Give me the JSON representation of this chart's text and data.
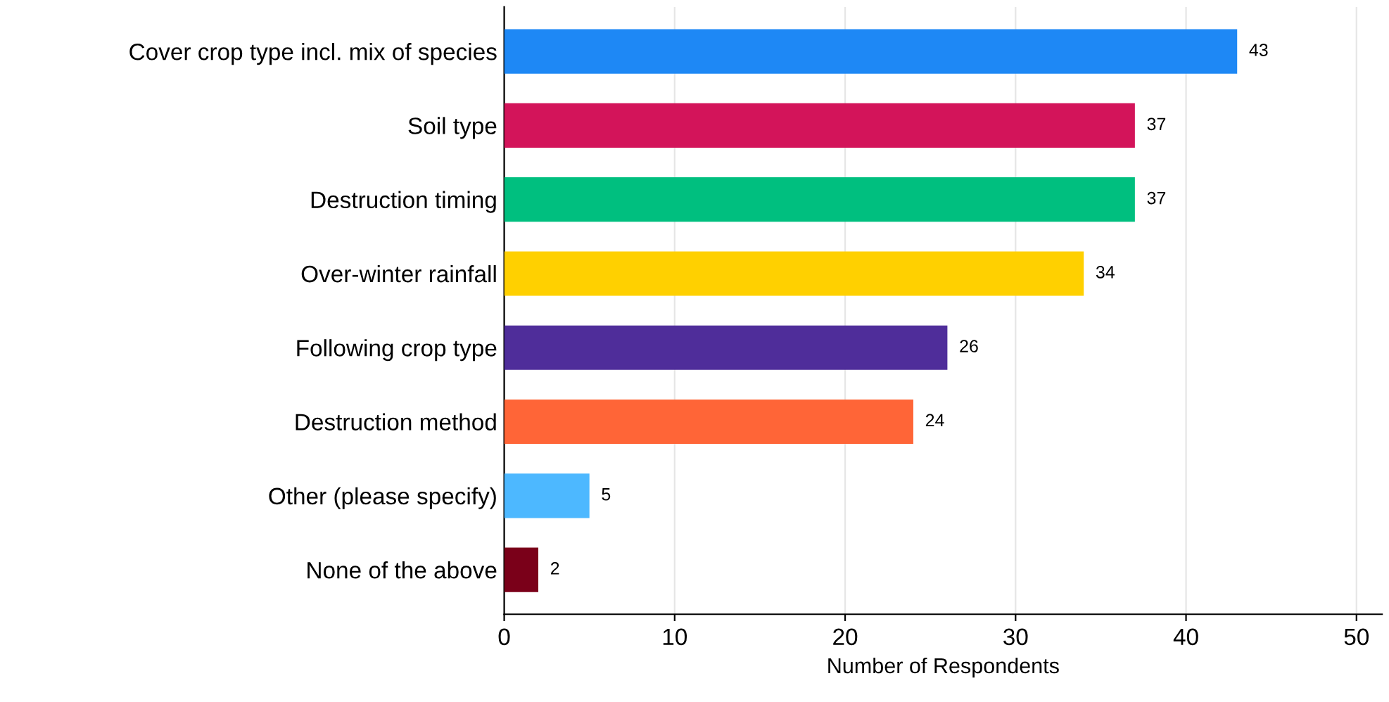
{
  "chart_data": {
    "type": "bar",
    "orientation": "horizontal",
    "xlabel": "Number of Respondents",
    "categories": [
      "Cover crop type incl. mix of species",
      "Soil type",
      "Destruction timing",
      "Over-winter rainfall",
      "Following crop type",
      "Destruction method",
      "Other (please specify)",
      "None of the above"
    ],
    "values": [
      43,
      37,
      37,
      34,
      26,
      24,
      5,
      2
    ],
    "colors": [
      "#1e88f5",
      "#d3145a",
      "#00bf7f",
      "#ffd000",
      "#4f2d9a",
      "#ff6537",
      "#4db8ff",
      "#7a0019"
    ],
    "xlim": [
      0,
      51.5
    ],
    "xticks": [
      0,
      10,
      20,
      30,
      40,
      50
    ],
    "grid": "x",
    "data_labels": true
  }
}
